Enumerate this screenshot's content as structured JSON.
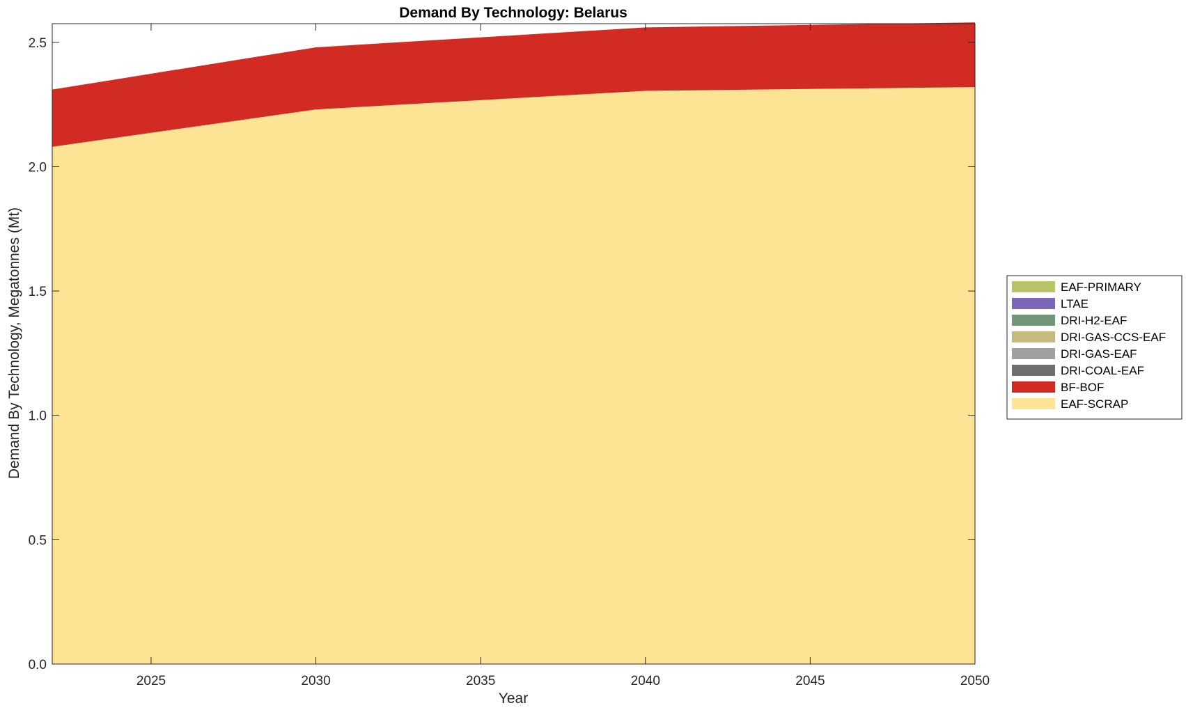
{
  "chart_data": {
    "type": "area",
    "stacked": true,
    "title": "Demand By Technology: Belarus",
    "xlabel": "Year",
    "ylabel": "Demand By Technology, Megatonnes (Mt)",
    "xlim": [
      2022,
      2050
    ],
    "ylim": [
      0,
      2.575
    ],
    "xticks": [
      2025,
      2030,
      2035,
      2040,
      2045,
      2050
    ],
    "yticks": [
      0.0,
      0.5,
      1.0,
      1.5,
      2.0,
      2.5
    ],
    "ytick_labels": [
      "0.0",
      "0.5",
      "1.0",
      "1.5",
      "2.0",
      "2.5"
    ],
    "x": [
      2022,
      2030,
      2040,
      2050
    ],
    "series": [
      {
        "name": "EAF-SCRAP",
        "color": "#fde494",
        "values": [
          2.08,
          2.23,
          2.305,
          2.32
        ]
      },
      {
        "name": "BF-BOF",
        "color": "#d12b24",
        "values": [
          0.23,
          0.25,
          0.255,
          0.26
        ]
      },
      {
        "name": "DRI-COAL-EAF",
        "color": "#6e6e6e",
        "values": [
          0,
          0,
          0,
          0
        ]
      },
      {
        "name": "DRI-GAS-EAF",
        "color": "#a0a0a0",
        "values": [
          0,
          0,
          0,
          0
        ]
      },
      {
        "name": "DRI-GAS-CCS-EAF",
        "color": "#c4bb7c",
        "values": [
          0,
          0,
          0,
          0
        ]
      },
      {
        "name": "DRI-H2-EAF",
        "color": "#72967a",
        "values": [
          0,
          0,
          0,
          0
        ]
      },
      {
        "name": "LTAE",
        "color": "#7b66b8",
        "values": [
          0,
          0,
          0,
          0
        ]
      },
      {
        "name": "EAF-PRIMARY",
        "color": "#b8c266",
        "values": [
          0,
          0,
          0,
          0
        ]
      }
    ],
    "legend": {
      "placement": "right",
      "order": [
        "EAF-PRIMARY",
        "LTAE",
        "DRI-H2-EAF",
        "DRI-GAS-CCS-EAF",
        "DRI-GAS-EAF",
        "DRI-COAL-EAF",
        "BF-BOF",
        "EAF-SCRAP"
      ]
    },
    "grid": false
  }
}
